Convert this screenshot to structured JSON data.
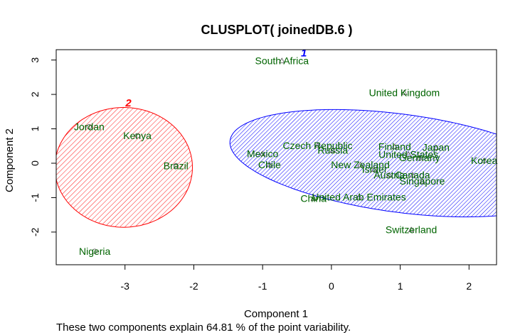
{
  "chart_data": {
    "type": "scatter",
    "title": "CLUSPLOT( joinedDB.6 )",
    "xlabel": "Component 1",
    "ylabel": "Component 2",
    "footnote": "These two components explain 64.81 % of the point variability.",
    "xlim": [
      -4.0,
      2.4
    ],
    "ylim": [
      -2.95,
      3.3
    ],
    "xticks": [
      -3,
      -2,
      -1,
      0,
      1,
      2
    ],
    "yticks": [
      -2,
      -1,
      0,
      1,
      2,
      3
    ],
    "label_color": "#006400",
    "clusters": [
      {
        "id": "1",
        "color": "#0000ff",
        "label_at": [
          -0.4,
          3.1
        ],
        "ellipse": {
          "cx": 1.0,
          "cy": 0.0,
          "rx": 2.58,
          "ry": 1.38,
          "angle_deg": -19.5
        }
      },
      {
        "id": "2",
        "color": "#ff0000",
        "label_at": [
          -2.95,
          1.65
        ],
        "ellipse": {
          "cx": -3.02,
          "cy": -0.12,
          "rx": 1.0,
          "ry": 1.74,
          "angle_deg": 0
        }
      }
    ],
    "points": [
      {
        "name": "South Africa",
        "x": -0.72,
        "y": 2.98,
        "cluster": "1"
      },
      {
        "name": "United Kingdom",
        "x": 1.06,
        "y": 2.05,
        "cluster": "1"
      },
      {
        "name": "Czech Republic",
        "x": -0.2,
        "y": 0.52,
        "cluster": "1"
      },
      {
        "name": "Russia",
        "x": 0.02,
        "y": 0.38,
        "cluster": "1"
      },
      {
        "name": "Mexico",
        "x": -1.0,
        "y": 0.28,
        "cluster": "1"
      },
      {
        "name": "Chile",
        "x": -0.9,
        "y": -0.04,
        "cluster": "1"
      },
      {
        "name": "Finland",
        "x": 0.92,
        "y": 0.48,
        "cluster": "1"
      },
      {
        "name": "Japan",
        "x": 1.52,
        "y": 0.46,
        "cluster": "1"
      },
      {
        "name": "United States",
        "x": 1.12,
        "y": 0.26,
        "cluster": "1"
      },
      {
        "name": "Germany",
        "x": 1.28,
        "y": 0.16,
        "cluster": "1"
      },
      {
        "name": "New Zealand",
        "x": 0.42,
        "y": -0.04,
        "cluster": "1"
      },
      {
        "name": "Israel",
        "x": 0.62,
        "y": -0.18,
        "cluster": "1"
      },
      {
        "name": "Austria",
        "x": 0.84,
        "y": -0.34,
        "cluster": "1"
      },
      {
        "name": "Canada",
        "x": 1.18,
        "y": -0.34,
        "cluster": "1"
      },
      {
        "name": "Singapore",
        "x": 1.32,
        "y": -0.52,
        "cluster": "1"
      },
      {
        "name": "Korea",
        "x": 2.22,
        "y": 0.08,
        "cluster": "1"
      },
      {
        "name": "China",
        "x": -0.26,
        "y": -1.02,
        "cluster": "1"
      },
      {
        "name": "United Arab Emirates",
        "x": 0.4,
        "y": -0.98,
        "cluster": "1"
      },
      {
        "name": "Switzerland",
        "x": 1.16,
        "y": -1.93,
        "cluster": "1"
      },
      {
        "name": "Jordan",
        "x": -3.52,
        "y": 1.06,
        "cluster": "2"
      },
      {
        "name": "Kenya",
        "x": -2.82,
        "y": 0.8,
        "cluster": "2"
      },
      {
        "name": "Brazil",
        "x": -2.26,
        "y": -0.07,
        "cluster": "2"
      },
      {
        "name": "Nigeria",
        "x": -3.44,
        "y": -2.56,
        "cluster": "2"
      }
    ]
  }
}
